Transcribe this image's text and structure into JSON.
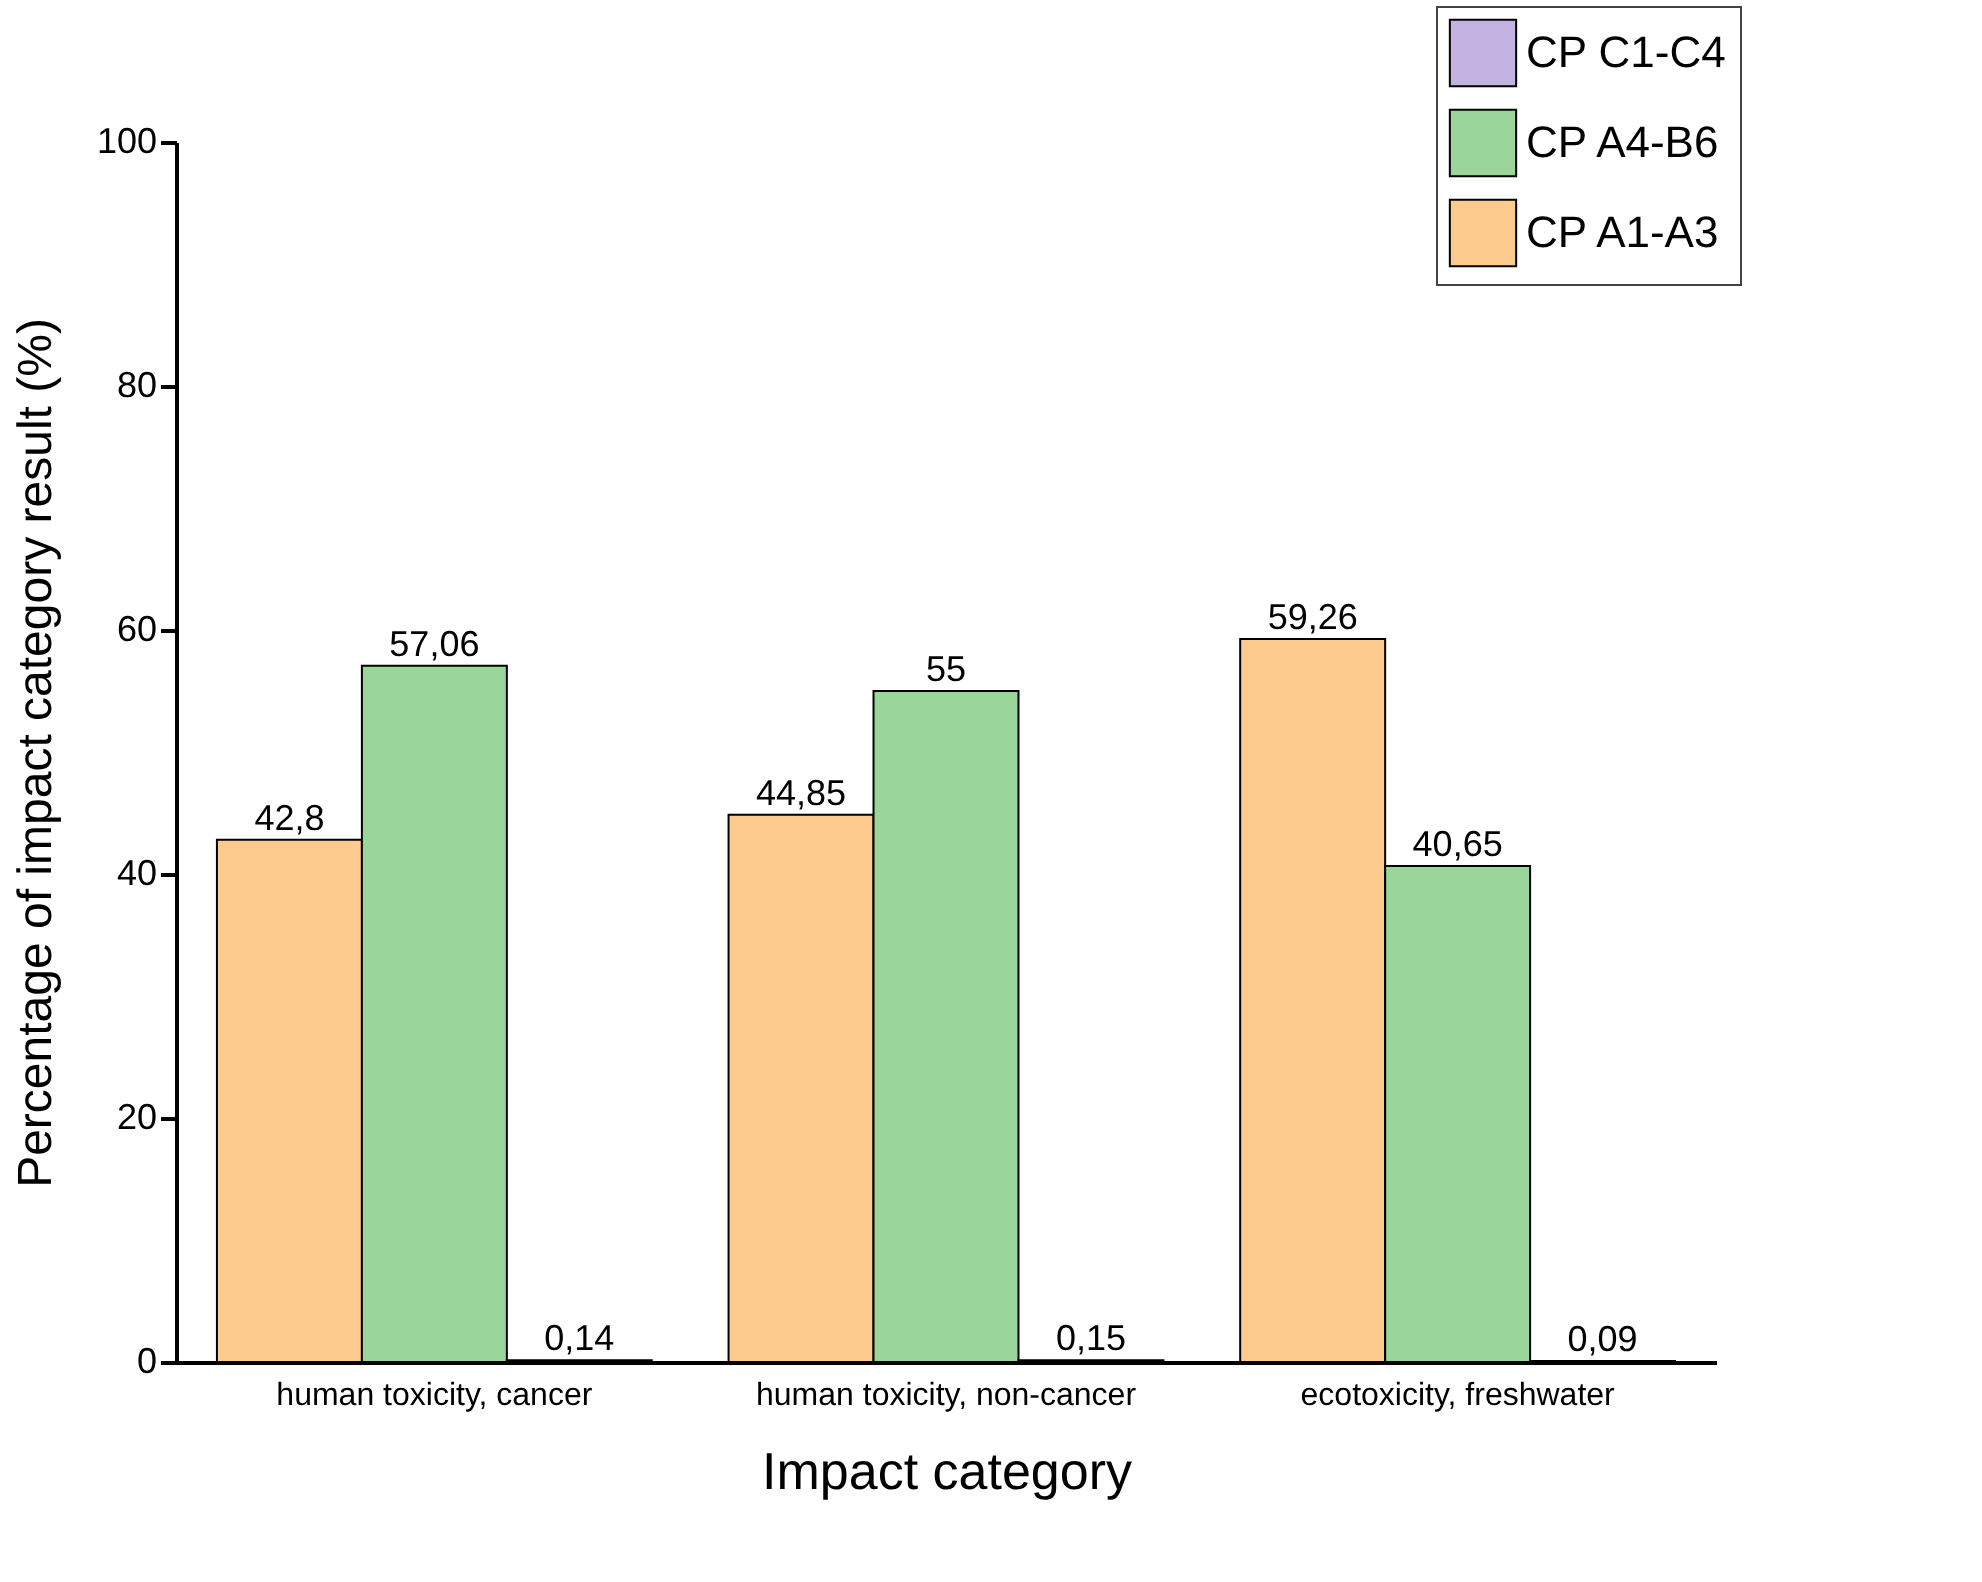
{
  "chart_data": {
    "type": "bar",
    "xlabel": "Impact category",
    "ylabel": "Percentage of impact category result (%)",
    "categories": [
      "human toxicity, cancer",
      "human toxicity, non-cancer",
      "ecotoxicity, freshwater"
    ],
    "series": [
      {
        "name": "CP A1-A3",
        "color": "#fecb8f",
        "values": [
          42.8,
          44.85,
          59.26
        ],
        "value_labels": [
          "42,8",
          "44,85",
          "59,26"
        ]
      },
      {
        "name": "CP A4-B6",
        "color": "#9ad69a",
        "values": [
          57.06,
          55,
          40.65
        ],
        "value_labels": [
          "57,06",
          "55",
          "40,65"
        ]
      },
      {
        "name": "CP C1-C4",
        "color": "#c3b1e1",
        "values": [
          0.14,
          0.15,
          0.09
        ],
        "value_labels": [
          "0,14",
          "0,15",
          "0,09"
        ]
      }
    ],
    "ylim": [
      0,
      100
    ],
    "yticks": [
      0,
      20,
      40,
      60,
      80,
      100
    ],
    "legend": "top right"
  }
}
